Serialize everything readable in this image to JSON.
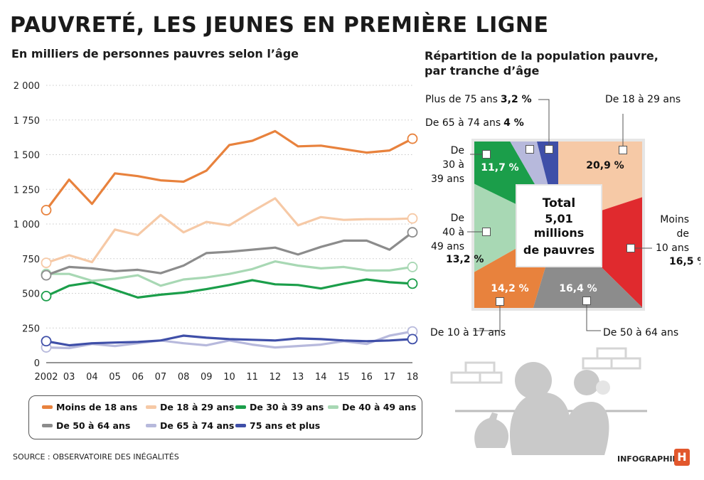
{
  "header": {
    "title": "PAUVRETÉ, LES JEUNES EN PREMIÈRE LIGNE",
    "line_subtitle": "En milliers de personnes pauvres selon l’âge",
    "pie_title_line1": "Répartition de la population pauvre,",
    "pie_title_line2": "par tranche d’âge"
  },
  "footer": {
    "source": "SOURCE : OBSERVATOIRE DES INÉGALITÉS",
    "credit": "INFOGRAPHIE",
    "logo_letter": "H"
  },
  "chart_data": [
    {
      "type": "line",
      "title": "En milliers de personnes pauvres selon l’âge",
      "xlabel": "",
      "ylabel": "",
      "categories": [
        "2002",
        "03",
        "04",
        "05",
        "06",
        "07",
        "08",
        "09",
        "10",
        "11",
        "12",
        "13",
        "14",
        "15",
        "16",
        "17",
        "18"
      ],
      "y_ticks": [
        "0",
        "250",
        "500",
        "750",
        "1 000",
        "1 250",
        "1 500",
        "1 750",
        "2 000"
      ],
      "ylim": [
        0,
        2000
      ],
      "grid": "horizontal dotted",
      "series": [
        {
          "name": "Moins de 18 ans",
          "color": "#e8823d",
          "values": [
            1100,
            1320,
            1145,
            1365,
            1345,
            1315,
            1305,
            1385,
            1570,
            1600,
            1670,
            1560,
            1565,
            1540,
            1515,
            1530,
            1615
          ]
        },
        {
          "name": "De 18 à 29 ans",
          "color": "#f6c9a6",
          "values": [
            720,
            775,
            725,
            960,
            920,
            1065,
            940,
            1015,
            990,
            1090,
            1185,
            990,
            1050,
            1030,
            1035,
            1035,
            1040
          ]
        },
        {
          "name": "De 30 à 39 ans",
          "color": "#1b9e4a",
          "values": [
            480,
            555,
            580,
            525,
            470,
            490,
            505,
            530,
            560,
            595,
            565,
            560,
            535,
            570,
            600,
            580,
            570
          ]
        },
        {
          "name": "De 40 à 49 ans",
          "color": "#a8d8b4",
          "values": [
            640,
            640,
            590,
            605,
            630,
            555,
            600,
            615,
            640,
            675,
            730,
            700,
            680,
            690,
            665,
            665,
            690
          ]
        },
        {
          "name": "De 50 à 64  ans",
          "color": "#8c8c8c",
          "values": [
            630,
            690,
            680,
            660,
            670,
            645,
            700,
            790,
            800,
            815,
            830,
            780,
            835,
            880,
            880,
            815,
            940
          ]
        },
        {
          "name": "De 65 à 74  ans",
          "color": "#b7b9dc",
          "values": [
            110,
            105,
            135,
            120,
            140,
            160,
            140,
            125,
            160,
            130,
            110,
            120,
            130,
            155,
            135,
            195,
            225
          ]
        },
        {
          "name": "75 ans et plus",
          "color": "#3f4fa8",
          "values": [
            155,
            125,
            140,
            145,
            150,
            160,
            195,
            180,
            170,
            165,
            160,
            175,
            170,
            160,
            155,
            160,
            170
          ]
        }
      ]
    },
    {
      "type": "pie",
      "title": "Répartition de la population pauvre, par tranche d’âge",
      "center_label": [
        "Total",
        "5,01",
        "millions",
        "de pauvres"
      ],
      "slices": [
        {
          "label": "De 18 à 29 ans",
          "value": 20.9,
          "value_label": "20,9 %",
          "color": "#f6c9a6"
        },
        {
          "label_lines": [
            "Moins",
            "de",
            "10 ans"
          ],
          "value": 16.5,
          "value_label": "16,5 %",
          "color": "#e02a2e"
        },
        {
          "label": "De 50 à 64  ans",
          "value": 16.4,
          "value_label": "16,4 %",
          "color": "#8c8c8c"
        },
        {
          "label": "De 10 à 17 ans",
          "value": 14.2,
          "value_label": "14,2 %",
          "color": "#e8823d"
        },
        {
          "label_lines": [
            "De",
            "40 à",
            "49 ans"
          ],
          "value": 13.2,
          "value_label": "13,2 %",
          "color": "#a8d8b4"
        },
        {
          "label_lines": [
            "De",
            "30 à",
            "39 ans"
          ],
          "value": 11.7,
          "value_label": "11,7 %",
          "color": "#1b9e4a"
        },
        {
          "label": "De 65 à 74 ans",
          "value": 4,
          "value_label": "4 %",
          "color": "#b7b9dc"
        },
        {
          "label": "Plus de 75 ans",
          "value": 3.2,
          "value_label": "3,2 %",
          "color": "#3f4fa8"
        }
      ]
    }
  ]
}
